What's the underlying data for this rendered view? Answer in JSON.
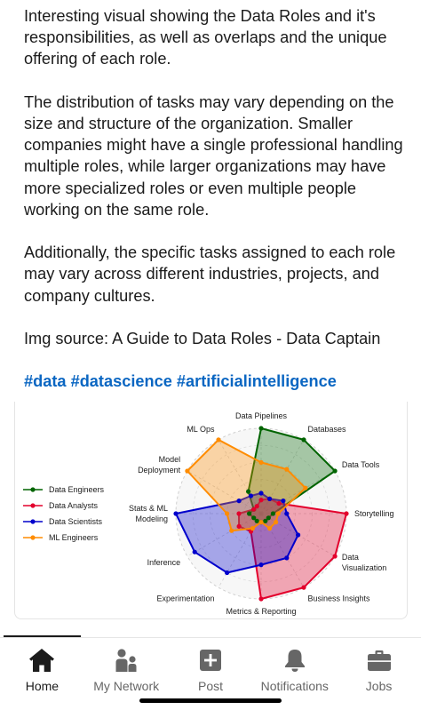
{
  "post": {
    "paragraphs": [
      "Interesting visual showing the Data Roles and it's responsibilities, as well as overlaps and the unique offering of each role.",
      "The distribution of tasks may vary depending on the size and structure of the organization. Smaller companies might have a single professional handling multiple roles, while larger organizations may have more specialized roles or even multiple people working on the same role.",
      "Additionally, the specific tasks assigned to each role may vary across different industries, projects, and company cultures.",
      "Img source: A Guide to Data Roles - Data Captain"
    ],
    "hashtags": [
      "#data",
      "#datascience",
      "#artificialintelligence"
    ]
  },
  "chart_data": {
    "type": "radar",
    "title": "",
    "axes": [
      "Data Pipelines",
      "Databases",
      "Data Tools",
      "Storytelling",
      "Data Visualization",
      "Business Insights",
      "Metrics & Reporting",
      "Experimentation",
      "Inference",
      "Stats & ML Modeling",
      "Model Deployment",
      "ML Ops"
    ],
    "range": [
      0,
      5
    ],
    "legend_position": "left",
    "series": [
      {
        "name": "Data Engineers",
        "color": "#006400",
        "values": [
          5,
          5,
          5,
          0.7,
          0.5,
          0.5,
          0.5,
          0.5,
          0.5,
          0.7,
          0.5,
          1.5
        ]
      },
      {
        "name": "Data Analysts",
        "color": "#e3002c",
        "values": [
          0.8,
          1,
          1.2,
          5,
          5,
          5,
          5,
          1.2,
          1.5,
          1.3,
          0.5,
          0.5
        ]
      },
      {
        "name": "Data Scientists",
        "color": "#0000cc",
        "values": [
          1.2,
          1,
          1.5,
          1.5,
          2.5,
          3,
          3,
          4,
          4.5,
          5,
          1.5,
          1.2
        ]
      },
      {
        "name": "ML Engineers",
        "color": "#ff8c00",
        "values": [
          3,
          3,
          3,
          1,
          1,
          1,
          0.5,
          1,
          2,
          2,
          5,
          5
        ]
      }
    ]
  },
  "nav": {
    "items": [
      {
        "label": "Home",
        "icon": "home-icon"
      },
      {
        "label": "My Network",
        "icon": "people-icon"
      },
      {
        "label": "Post",
        "icon": "plus-box-icon"
      },
      {
        "label": "Notifications",
        "icon": "bell-icon"
      },
      {
        "label": "Jobs",
        "icon": "briefcase-icon"
      }
    ],
    "active": "Home"
  }
}
